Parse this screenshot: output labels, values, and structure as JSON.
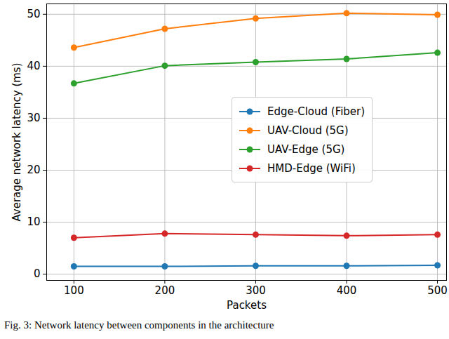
{
  "chart_data": {
    "type": "line",
    "caption": "Fig. 3: Network latency between components in the architecture",
    "x_label": "Packets",
    "y_label": "Average network latency (ms)",
    "x": [
      100,
      200,
      300,
      400,
      500
    ],
    "series": [
      {
        "name": "Edge-Cloud (Fiber)",
        "color": "#1f77b4",
        "marker": "circle",
        "values": [
          1.5,
          1.5,
          1.6,
          1.6,
          1.7
        ]
      },
      {
        "name": "UAV-Cloud (5G)",
        "color": "#ff7f0e",
        "marker": "circle",
        "values": [
          43.6,
          47.2,
          49.2,
          50.2,
          49.9
        ]
      },
      {
        "name": "UAV-Edge (5G)",
        "color": "#2ca02c",
        "marker": "circle",
        "values": [
          36.7,
          40.1,
          40.8,
          41.4,
          42.6
        ]
      },
      {
        "name": "HMD-Edge (WiFi)",
        "color": "#d62728",
        "marker": "circle",
        "values": [
          7.0,
          7.8,
          7.6,
          7.4,
          7.6
        ]
      }
    ],
    "xlim": [
      70,
      510
    ],
    "ylim": [
      -1.2,
      52
    ],
    "xticks": [
      100,
      200,
      300,
      400,
      500
    ],
    "yticks": [
      0,
      10,
      20,
      30,
      40,
      50
    ],
    "grid": true,
    "legend": "center right"
  }
}
